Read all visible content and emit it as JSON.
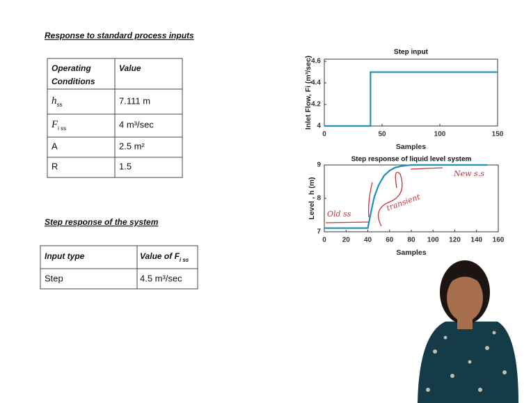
{
  "slide": {
    "heading1": "Response to standard process inputs",
    "table1": {
      "header": [
        [
          "Operating",
          "Conditions"
        ],
        "Value"
      ],
      "rows": [
        [
          {
            "main": "h",
            "sub": "ss"
          },
          "7.111 m"
        ],
        [
          {
            "main": "F",
            "sub": "i ss"
          },
          "4 m³/sec"
        ],
        [
          "A",
          "2.5 m²"
        ],
        [
          "R",
          "1.5"
        ]
      ]
    },
    "heading2": "Step response of the system",
    "table2": {
      "header": [
        "Input type",
        {
          "main": "Value of F",
          "sub": "i ss"
        }
      ],
      "rows": [
        [
          "Step",
          "4.5 m³/sec"
        ]
      ]
    },
    "annotations": [
      "Old ss",
      "transient",
      "New s.s"
    ]
  },
  "chart_data": [
    {
      "type": "line",
      "title": "Step input",
      "xlabel": "Samples",
      "ylabel": "Inlet Flow, Fi (m³/sec)",
      "x": [
        0,
        40,
        40,
        150
      ],
      "series": [
        {
          "color": "#1f8fb8",
          "values": [
            4,
            4,
            4.5,
            4.5
          ]
        }
      ],
      "xlim": [
        0,
        150
      ],
      "xticks": [
        0,
        50,
        100,
        150
      ],
      "ylim": [
        4,
        4.62
      ],
      "yticks": [
        4,
        4.2,
        4.4,
        4.6
      ]
    },
    {
      "type": "line",
      "title": "Step response of liquid level system",
      "xlabel": "Samples",
      "ylabel": "Level , h (m)",
      "x": [
        0,
        40,
        43,
        46,
        50,
        55,
        60,
        65,
        70,
        75,
        80,
        90,
        150
      ],
      "series": [
        {
          "color": "#1f8fb8",
          "values": [
            7.111,
            7.111,
            7.6,
            8.05,
            8.4,
            8.68,
            8.83,
            8.92,
            8.96,
            8.98,
            9.0,
            9.0,
            9.0
          ]
        }
      ],
      "xlim": [
        0,
        160
      ],
      "xticks": [
        0,
        20,
        40,
        60,
        80,
        100,
        120,
        140,
        160
      ],
      "ylim": [
        7,
        9
      ],
      "yticks": [
        7,
        8,
        9
      ]
    }
  ]
}
